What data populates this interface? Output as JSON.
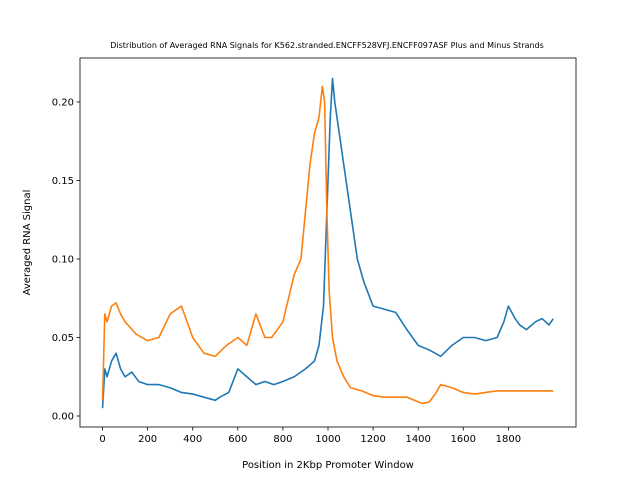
{
  "chart_data": {
    "type": "line",
    "title": "Distribution of Averaged RNA Signals for K562.stranded.ENCFF528VFJ.ENCFF097ASF Plus and Minus Strands",
    "xlabel": "Position in 2Kbp Promoter Window",
    "ylabel": "Averaged RNA Signal",
    "xlim": [
      -100,
      2100
    ],
    "ylim": [
      -0.007,
      0.228
    ],
    "xticks": [
      0,
      200,
      400,
      600,
      800,
      1000,
      1200,
      1400,
      1600,
      1800
    ],
    "xtick_labels": [
      "0",
      "200",
      "400",
      "600",
      "800",
      "1000",
      "1200",
      "1400",
      "1600",
      "1800"
    ],
    "yticks": [
      0.0,
      0.05,
      0.1,
      0.15,
      0.2
    ],
    "ytick_labels": [
      "0.00",
      "0.05",
      "0.10",
      "0.15",
      "0.20"
    ],
    "grid": false,
    "series": [
      {
        "color": "#1f77b4",
        "x": [
          0,
          10,
          20,
          40,
          60,
          80,
          100,
          130,
          160,
          200,
          250,
          300,
          350,
          400,
          450,
          500,
          520,
          560,
          600,
          640,
          680,
          720,
          760,
          800,
          850,
          900,
          940,
          960,
          980,
          1000,
          1010,
          1020,
          1030,
          1040,
          1060,
          1080,
          1100,
          1130,
          1160,
          1200,
          1250,
          1300,
          1350,
          1400,
          1450,
          1500,
          1550,
          1600,
          1650,
          1700,
          1750,
          1780,
          1800,
          1830,
          1850,
          1880,
          1920,
          1950,
          1980,
          1999
        ],
        "y": [
          0.005,
          0.03,
          0.025,
          0.035,
          0.04,
          0.03,
          0.025,
          0.028,
          0.022,
          0.02,
          0.02,
          0.018,
          0.015,
          0.014,
          0.012,
          0.01,
          0.012,
          0.015,
          0.03,
          0.025,
          0.02,
          0.022,
          0.02,
          0.022,
          0.025,
          0.03,
          0.035,
          0.045,
          0.07,
          0.15,
          0.19,
          0.215,
          0.2,
          0.19,
          0.17,
          0.15,
          0.13,
          0.1,
          0.085,
          0.07,
          0.068,
          0.066,
          0.055,
          0.045,
          0.042,
          0.038,
          0.045,
          0.05,
          0.05,
          0.048,
          0.05,
          0.06,
          0.07,
          0.062,
          0.058,
          0.055,
          0.06,
          0.062,
          0.058,
          0.062
        ]
      },
      {
        "color": "#ff7f0e",
        "x": [
          0,
          10,
          20,
          40,
          60,
          80,
          100,
          150,
          200,
          250,
          300,
          350,
          400,
          450,
          500,
          550,
          600,
          640,
          680,
          720,
          750,
          800,
          850,
          880,
          900,
          920,
          940,
          960,
          975,
          985,
          995,
          1005,
          1020,
          1040,
          1070,
          1100,
          1150,
          1200,
          1250,
          1300,
          1350,
          1400,
          1420,
          1450,
          1480,
          1500,
          1550,
          1600,
          1650,
          1700,
          1750,
          1800,
          1850,
          1900,
          1950,
          1999
        ],
        "y": [
          0.01,
          0.065,
          0.06,
          0.07,
          0.072,
          0.065,
          0.06,
          0.052,
          0.048,
          0.05,
          0.065,
          0.07,
          0.05,
          0.04,
          0.038,
          0.045,
          0.05,
          0.045,
          0.065,
          0.05,
          0.05,
          0.06,
          0.09,
          0.1,
          0.13,
          0.16,
          0.18,
          0.19,
          0.21,
          0.2,
          0.13,
          0.08,
          0.05,
          0.035,
          0.025,
          0.018,
          0.016,
          0.013,
          0.012,
          0.012,
          0.012,
          0.009,
          0.008,
          0.009,
          0.015,
          0.02,
          0.018,
          0.015,
          0.014,
          0.015,
          0.016,
          0.016,
          0.016,
          0.016,
          0.016,
          0.016
        ]
      }
    ]
  }
}
